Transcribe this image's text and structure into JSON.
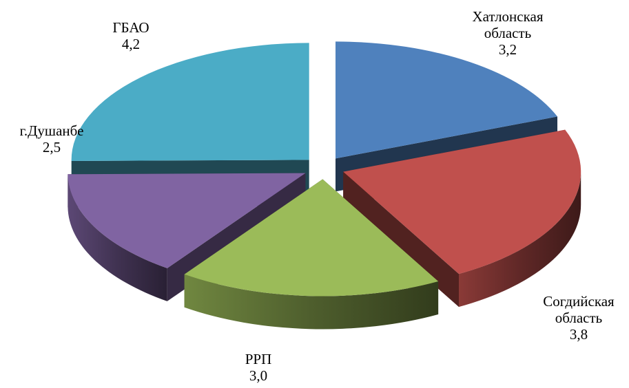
{
  "chart_data": {
    "type": "pie",
    "variant": "3d-exploded",
    "title": "",
    "categories": [
      "Хатлонская область",
      "Согдийская область",
      "РРП",
      "г.Душанбе",
      "ГБАО"
    ],
    "values": [
      3.2,
      3.8,
      3.0,
      2.5,
      4.2
    ],
    "value_labels": [
      "3,2",
      "3,8",
      "3,0",
      "2,5",
      "4,2"
    ],
    "label_lines": [
      [
        "Хатлонская",
        "область"
      ],
      [
        "Согдийская",
        "область"
      ],
      [
        "РРП"
      ],
      [
        "г.Душанбе"
      ],
      [
        "ГБАО"
      ]
    ],
    "colors": [
      "#4F81BD",
      "#C0504D",
      "#9BBB59",
      "#8064A2",
      "#4BACC6"
    ],
    "legend": "none"
  }
}
